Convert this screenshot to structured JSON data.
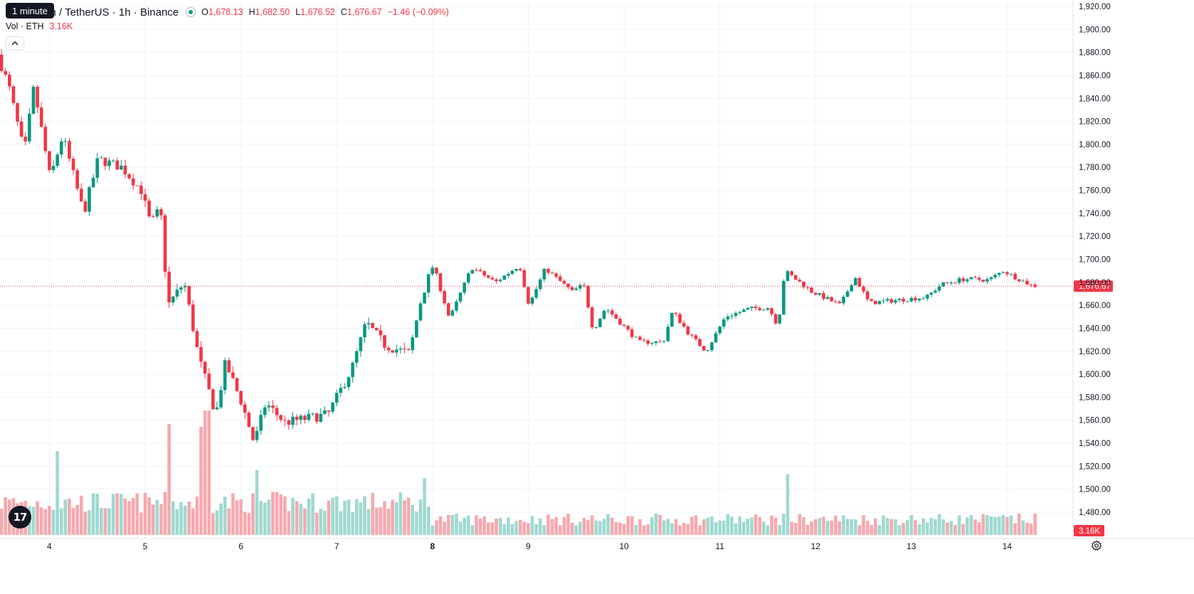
{
  "header": {
    "tooltip": "1 minute",
    "title": "um / TetherUS · 1h · Binance",
    "open_label": "O",
    "open": "1,678.13",
    "high_label": "H",
    "high": "1,682.50",
    "low_label": "L",
    "low": "1,676.52",
    "close_label": "C",
    "close": "1,676.67",
    "change": "−1.46 (−0.09%)"
  },
  "volume_legend": {
    "label": "Vol · ETH",
    "value": "3.16K"
  },
  "colors": {
    "up": "#089981",
    "down": "#f23645",
    "up_volume": "#9fd9d0",
    "down_volume": "#f6a9af",
    "grid": "#f0f3fa",
    "text": "#131722"
  },
  "icons": {
    "collapse": "chevron-up-icon",
    "logo": "tradingview-logo-icon",
    "settings": "gear-icon"
  },
  "logo_text": "17",
  "chart_data": {
    "type": "candlestick",
    "symbol": "um / TetherUS",
    "interval": "1h",
    "exchange": "Binance",
    "grid": true,
    "y_axis": {
      "position": "right",
      "range": [
        1468,
        1928
      ],
      "ticks": [
        "1,920.00",
        "1,900.00",
        "1,880.00",
        "1,860.00",
        "1,840.00",
        "1,820.00",
        "1,800.00",
        "1,780.00",
        "1,760.00",
        "1,740.00",
        "1,720.00",
        "1,700.00",
        "1,680.00",
        "1,660.00",
        "1,640.00",
        "1,620.00",
        "1,600.00",
        "1,580.00",
        "1,560.00",
        "1,540.00",
        "1,520.00",
        "1,500.00",
        "1,480.00"
      ]
    },
    "x_axis": {
      "ticks": [
        "4",
        "5",
        "6",
        "7",
        "8",
        "9",
        "10",
        "11",
        "12",
        "13",
        "14"
      ],
      "bold_ticks": [
        "8"
      ]
    },
    "last_price": {
      "value": 1676.67,
      "label": "1,676.67"
    },
    "last_volume_label": "3.16K",
    "series_path": [
      {
        "day": 3.5,
        "price": 1878
      },
      {
        "day": 3.62,
        "price": 1850
      },
      {
        "day": 3.78,
        "price": 1792
      },
      {
        "day": 3.88,
        "price": 1850
      },
      {
        "day": 4.05,
        "price": 1770
      },
      {
        "day": 4.18,
        "price": 1808
      },
      {
        "day": 4.4,
        "price": 1740
      },
      {
        "day": 4.55,
        "price": 1787
      },
      {
        "day": 4.8,
        "price": 1780
      },
      {
        "day": 5.0,
        "price": 1760
      },
      {
        "day": 5.1,
        "price": 1730
      },
      {
        "day": 5.2,
        "price": 1745
      },
      {
        "day": 5.28,
        "price": 1660
      },
      {
        "day": 5.45,
        "price": 1680
      },
      {
        "day": 5.6,
        "price": 1615
      },
      {
        "day": 5.78,
        "price": 1565
      },
      {
        "day": 5.88,
        "price": 1610
      },
      {
        "day": 6.05,
        "price": 1575
      },
      {
        "day": 6.18,
        "price": 1540
      },
      {
        "day": 6.3,
        "price": 1575
      },
      {
        "day": 6.5,
        "price": 1558
      },
      {
        "day": 6.95,
        "price": 1565
      },
      {
        "day": 7.2,
        "price": 1605
      },
      {
        "day": 7.35,
        "price": 1645
      },
      {
        "day": 7.55,
        "price": 1625
      },
      {
        "day": 7.8,
        "price": 1618
      },
      {
        "day": 7.93,
        "price": 1668
      },
      {
        "day": 8.05,
        "price": 1695
      },
      {
        "day": 8.22,
        "price": 1648
      },
      {
        "day": 8.45,
        "price": 1693
      },
      {
        "day": 8.7,
        "price": 1680
      },
      {
        "day": 8.95,
        "price": 1695
      },
      {
        "day": 9.05,
        "price": 1660
      },
      {
        "day": 9.22,
        "price": 1692
      },
      {
        "day": 9.5,
        "price": 1672
      },
      {
        "day": 9.62,
        "price": 1678
      },
      {
        "day": 9.72,
        "price": 1638
      },
      {
        "day": 9.85,
        "price": 1658
      },
      {
        "day": 10.0,
        "price": 1645
      },
      {
        "day": 10.2,
        "price": 1628
      },
      {
        "day": 10.45,
        "price": 1628
      },
      {
        "day": 10.55,
        "price": 1655
      },
      {
        "day": 10.72,
        "price": 1635
      },
      {
        "day": 10.9,
        "price": 1620
      },
      {
        "day": 11.1,
        "price": 1650
      },
      {
        "day": 11.35,
        "price": 1657
      },
      {
        "day": 11.55,
        "price": 1658
      },
      {
        "day": 11.65,
        "price": 1642
      },
      {
        "day": 11.72,
        "price": 1690
      },
      {
        "day": 12.0,
        "price": 1672
      },
      {
        "day": 12.3,
        "price": 1660
      },
      {
        "day": 12.45,
        "price": 1685
      },
      {
        "day": 12.6,
        "price": 1662
      },
      {
        "day": 12.95,
        "price": 1665
      },
      {
        "day": 13.2,
        "price": 1667
      },
      {
        "day": 13.35,
        "price": 1678
      },
      {
        "day": 13.6,
        "price": 1683
      },
      {
        "day": 13.85,
        "price": 1682
      },
      {
        "day": 14.0,
        "price": 1690
      },
      {
        "day": 14.3,
        "price": 1677
      }
    ],
    "volume_spikes": [
      {
        "day": 4.08,
        "volume": 0.62,
        "direction": "up"
      },
      {
        "day": 5.25,
        "volume": 0.82,
        "direction": "down"
      },
      {
        "day": 5.58,
        "volume": 0.8,
        "direction": "down"
      },
      {
        "day": 5.65,
        "volume": 0.92,
        "direction": "up"
      },
      {
        "day": 6.18,
        "volume": 0.48,
        "direction": "down"
      },
      {
        "day": 7.93,
        "volume": 0.42,
        "direction": "up"
      },
      {
        "day": 11.72,
        "volume": 0.45,
        "direction": "up"
      }
    ]
  }
}
